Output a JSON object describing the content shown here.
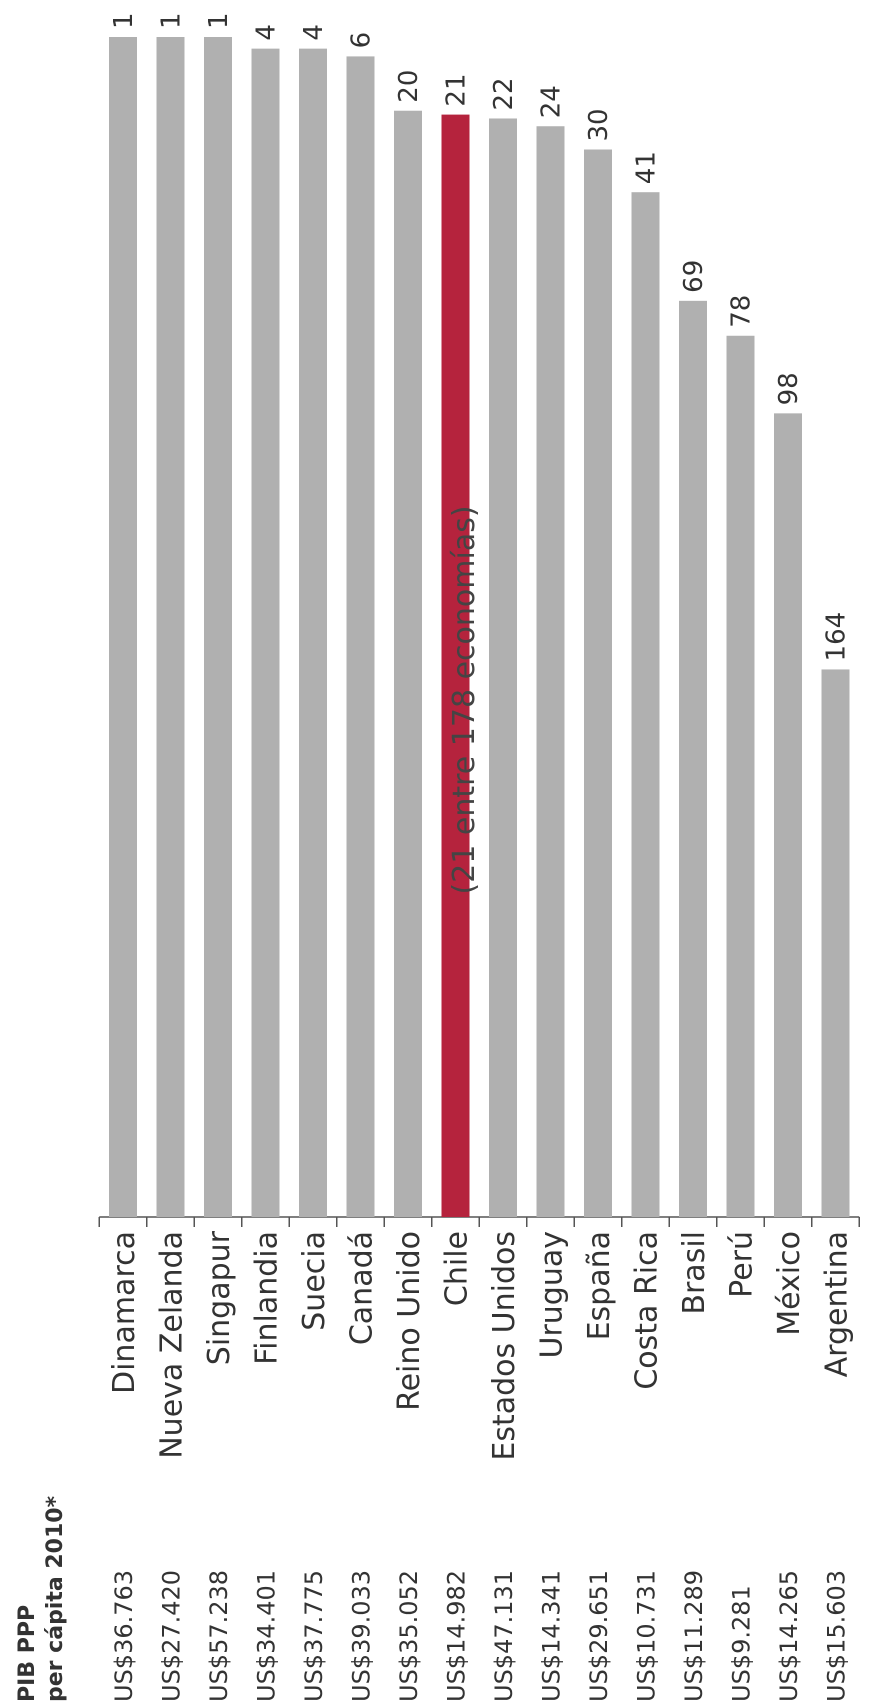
{
  "chart_data": {
    "type": "bar",
    "title": "(21 entre 178 economías)",
    "categories": [
      "Dinamarca",
      "Nueva Zelanda",
      "Singapur",
      "Finlandia",
      "Suecia",
      "Canadá",
      "Reino Unido",
      "Chile",
      "Estados Unidos",
      "Uruguay",
      "España",
      "Costa Rica",
      "Brasil",
      "Perú",
      "México",
      "Argentina"
    ],
    "values": [
      1,
      1,
      1,
      4,
      4,
      6,
      20,
      21,
      22,
      24,
      30,
      41,
      69,
      78,
      98,
      164
    ],
    "gdp_header_line1": "PIB PPP",
    "gdp_header_line2": "per cápita 2010*",
    "gdp_per_capita": [
      "US$36.763",
      "US$27.420",
      "US$57.238",
      "US$34.401",
      "US$37.775",
      "US$39.033",
      "US$35.052",
      "US$14.982",
      "US$47.131",
      "US$14.341",
      "US$29.651",
      "US$10.731",
      "US$11.289",
      "US$9.281",
      "US$14.265",
      "US$15.603"
    ],
    "highlight_category": "Chile",
    "colors": {
      "bar": "#b0b0b0",
      "highlight": "#b5233d"
    },
    "orientation": "rotated-90-ccw",
    "scale": "rank (smaller value = longer bar)"
  }
}
